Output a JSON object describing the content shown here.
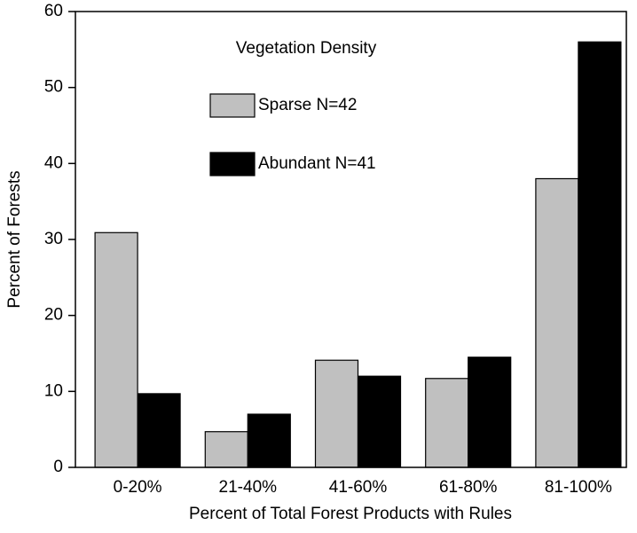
{
  "chart_data": {
    "type": "bar",
    "xlabel": "Percent of Total Forest Products with Rules",
    "ylabel": "Percent of Forests",
    "legend_title": "Vegetation Density",
    "legend_position": "upper center",
    "categories": [
      "0-20%",
      "21-40%",
      "41-60%",
      "61-80%",
      "81-100%"
    ],
    "series": [
      {
        "name": "Sparse N=42",
        "color": "#c0c0c0",
        "values": [
          30.9,
          4.7,
          14.1,
          11.7,
          38
        ]
      },
      {
        "name": "Abundant N=41",
        "color": "#000000",
        "values": [
          9.7,
          7.0,
          12.0,
          14.5,
          56
        ]
      }
    ],
    "ylim": [
      0,
      60
    ],
    "yticks": [
      0,
      10,
      20,
      30,
      40,
      50,
      60
    ],
    "grid": false
  }
}
